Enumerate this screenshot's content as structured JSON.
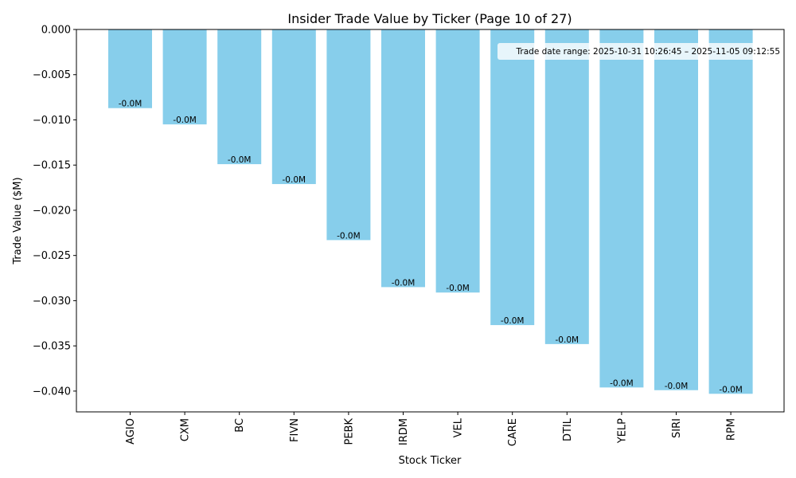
{
  "chart_data": {
    "type": "bar",
    "title": "Insider Trade Value by Ticker (Page 10 of 27)",
    "xlabel": "Stock Ticker",
    "ylabel": "Trade Value ($M)",
    "categories": [
      "AGIO",
      "CXM",
      "BC",
      "FIVN",
      "PEBK",
      "IRDM",
      "VEL",
      "CARE",
      "DTIL",
      "YELP",
      "SIRI",
      "RPM"
    ],
    "values": [
      -0.0087,
      -0.0105,
      -0.0149,
      -0.0171,
      -0.0233,
      -0.0285,
      -0.0291,
      -0.0327,
      -0.0348,
      -0.0396,
      -0.0399,
      -0.0403
    ],
    "data_labels": [
      "-0.0M",
      "-0.0M",
      "-0.0M",
      "-0.0M",
      "-0.0M",
      "-0.0M",
      "-0.0M",
      "-0.0M",
      "-0.0M",
      "-0.0M",
      "-0.0M",
      "-0.0M"
    ],
    "ylim": [
      -0.0423,
      0.0
    ],
    "yticks": [
      0.0,
      -0.005,
      -0.01,
      -0.015,
      -0.02,
      -0.025,
      -0.03,
      -0.035,
      -0.04
    ],
    "ytick_labels": [
      "0.000",
      "−0.005",
      "−0.010",
      "−0.015",
      "−0.020",
      "−0.025",
      "−0.030",
      "−0.035",
      "−0.040"
    ],
    "bar_color": "#87ceeb",
    "grid": false,
    "legend": "none",
    "annotation": {
      "text": "Trade date range: 2025-10-31 10:26:45 – 2025-11-05 09:12:55",
      "placement": "top-right"
    }
  }
}
